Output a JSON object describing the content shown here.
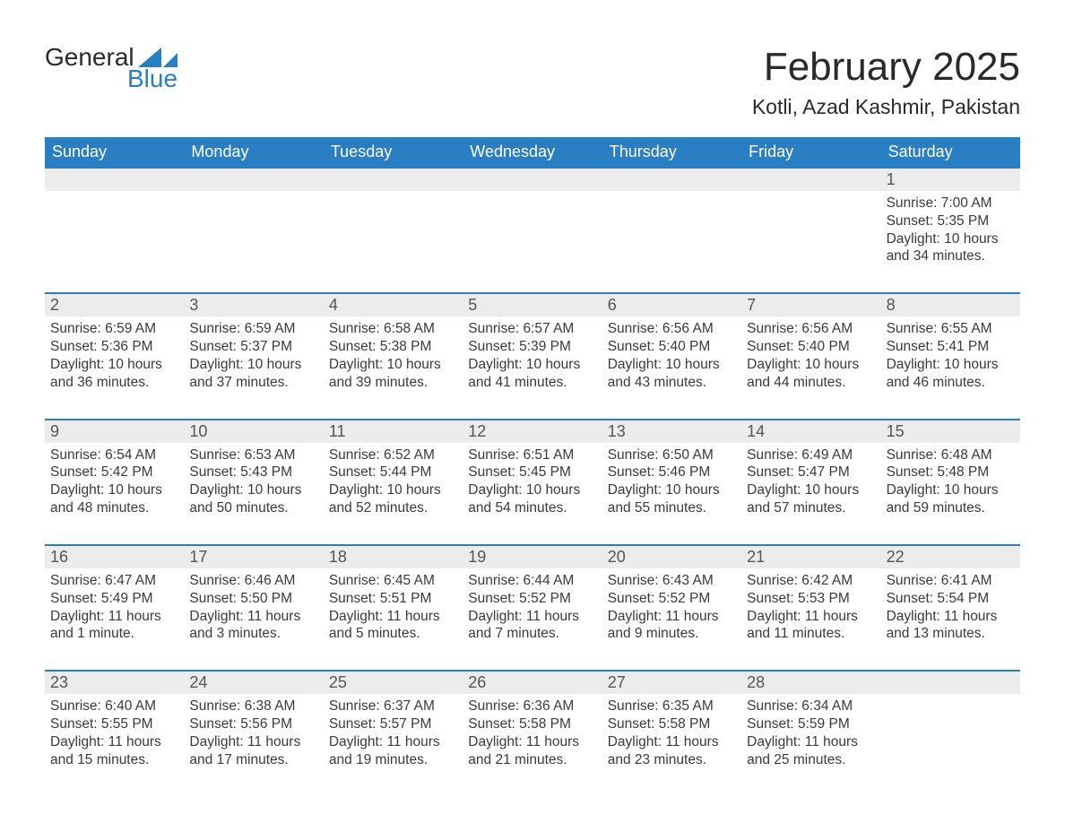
{
  "branding": {
    "logo_word1": "General",
    "logo_word2": "Blue",
    "logo_text_color": "#2a2a2a",
    "logo_accent_color": "#2a7fc4"
  },
  "header": {
    "month_title": "February 2025",
    "location": "Kotli, Azad Kashmir, Pakistan"
  },
  "styling": {
    "header_bg": "#2a7fc4",
    "header_text": "#ffffff",
    "daynum_bg": "#ececec",
    "daynum_text": "#555555",
    "body_text": "#3a3a3a",
    "week_border": "#2a7fc4",
    "page_bg": "#ffffff",
    "title_fontsize": 44,
    "location_fontsize": 23,
    "dow_fontsize": 18,
    "body_fontsize": 15.5
  },
  "days_of_week": [
    "Sunday",
    "Monday",
    "Tuesday",
    "Wednesday",
    "Thursday",
    "Friday",
    "Saturday"
  ],
  "labels": {
    "sunrise": "Sunrise:",
    "sunset": "Sunset:",
    "daylight": "Daylight:"
  },
  "weeks": [
    {
      "cells": [
        {
          "day": "",
          "sunrise": "",
          "sunset": "",
          "daylight": ""
        },
        {
          "day": "",
          "sunrise": "",
          "sunset": "",
          "daylight": ""
        },
        {
          "day": "",
          "sunrise": "",
          "sunset": "",
          "daylight": ""
        },
        {
          "day": "",
          "sunrise": "",
          "sunset": "",
          "daylight": ""
        },
        {
          "day": "",
          "sunrise": "",
          "sunset": "",
          "daylight": ""
        },
        {
          "day": "",
          "sunrise": "",
          "sunset": "",
          "daylight": ""
        },
        {
          "day": "1",
          "sunrise": "7:00 AM",
          "sunset": "5:35 PM",
          "daylight": "10 hours and 34 minutes."
        }
      ]
    },
    {
      "cells": [
        {
          "day": "2",
          "sunrise": "6:59 AM",
          "sunset": "5:36 PM",
          "daylight": "10 hours and 36 minutes."
        },
        {
          "day": "3",
          "sunrise": "6:59 AM",
          "sunset": "5:37 PM",
          "daylight": "10 hours and 37 minutes."
        },
        {
          "day": "4",
          "sunrise": "6:58 AM",
          "sunset": "5:38 PM",
          "daylight": "10 hours and 39 minutes."
        },
        {
          "day": "5",
          "sunrise": "6:57 AM",
          "sunset": "5:39 PM",
          "daylight": "10 hours and 41 minutes."
        },
        {
          "day": "6",
          "sunrise": "6:56 AM",
          "sunset": "5:40 PM",
          "daylight": "10 hours and 43 minutes."
        },
        {
          "day": "7",
          "sunrise": "6:56 AM",
          "sunset": "5:40 PM",
          "daylight": "10 hours and 44 minutes."
        },
        {
          "day": "8",
          "sunrise": "6:55 AM",
          "sunset": "5:41 PM",
          "daylight": "10 hours and 46 minutes."
        }
      ]
    },
    {
      "cells": [
        {
          "day": "9",
          "sunrise": "6:54 AM",
          "sunset": "5:42 PM",
          "daylight": "10 hours and 48 minutes."
        },
        {
          "day": "10",
          "sunrise": "6:53 AM",
          "sunset": "5:43 PM",
          "daylight": "10 hours and 50 minutes."
        },
        {
          "day": "11",
          "sunrise": "6:52 AM",
          "sunset": "5:44 PM",
          "daylight": "10 hours and 52 minutes."
        },
        {
          "day": "12",
          "sunrise": "6:51 AM",
          "sunset": "5:45 PM",
          "daylight": "10 hours and 54 minutes."
        },
        {
          "day": "13",
          "sunrise": "6:50 AM",
          "sunset": "5:46 PM",
          "daylight": "10 hours and 55 minutes."
        },
        {
          "day": "14",
          "sunrise": "6:49 AM",
          "sunset": "5:47 PM",
          "daylight": "10 hours and 57 minutes."
        },
        {
          "day": "15",
          "sunrise": "6:48 AM",
          "sunset": "5:48 PM",
          "daylight": "10 hours and 59 minutes."
        }
      ]
    },
    {
      "cells": [
        {
          "day": "16",
          "sunrise": "6:47 AM",
          "sunset": "5:49 PM",
          "daylight": "11 hours and 1 minute."
        },
        {
          "day": "17",
          "sunrise": "6:46 AM",
          "sunset": "5:50 PM",
          "daylight": "11 hours and 3 minutes."
        },
        {
          "day": "18",
          "sunrise": "6:45 AM",
          "sunset": "5:51 PM",
          "daylight": "11 hours and 5 minutes."
        },
        {
          "day": "19",
          "sunrise": "6:44 AM",
          "sunset": "5:52 PM",
          "daylight": "11 hours and 7 minutes."
        },
        {
          "day": "20",
          "sunrise": "6:43 AM",
          "sunset": "5:52 PM",
          "daylight": "11 hours and 9 minutes."
        },
        {
          "day": "21",
          "sunrise": "6:42 AM",
          "sunset": "5:53 PM",
          "daylight": "11 hours and 11 minutes."
        },
        {
          "day": "22",
          "sunrise": "6:41 AM",
          "sunset": "5:54 PM",
          "daylight": "11 hours and 13 minutes."
        }
      ]
    },
    {
      "cells": [
        {
          "day": "23",
          "sunrise": "6:40 AM",
          "sunset": "5:55 PM",
          "daylight": "11 hours and 15 minutes."
        },
        {
          "day": "24",
          "sunrise": "6:38 AM",
          "sunset": "5:56 PM",
          "daylight": "11 hours and 17 minutes."
        },
        {
          "day": "25",
          "sunrise": "6:37 AM",
          "sunset": "5:57 PM",
          "daylight": "11 hours and 19 minutes."
        },
        {
          "day": "26",
          "sunrise": "6:36 AM",
          "sunset": "5:58 PM",
          "daylight": "11 hours and 21 minutes."
        },
        {
          "day": "27",
          "sunrise": "6:35 AM",
          "sunset": "5:58 PM",
          "daylight": "11 hours and 23 minutes."
        },
        {
          "day": "28",
          "sunrise": "6:34 AM",
          "sunset": "5:59 PM",
          "daylight": "11 hours and 25 minutes."
        },
        {
          "day": "",
          "sunrise": "",
          "sunset": "",
          "daylight": ""
        }
      ]
    }
  ]
}
